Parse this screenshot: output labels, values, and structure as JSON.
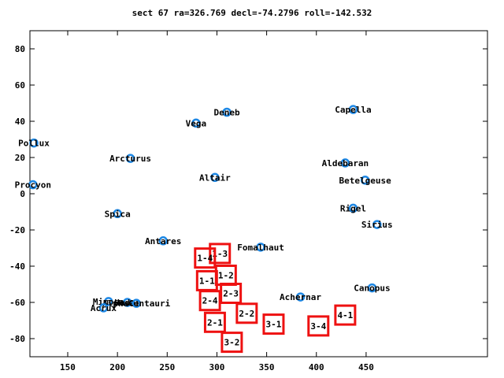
{
  "chart_data": {
    "type": "scatter",
    "title": "sect 67 ra=326.769 decl=-74.2796 roll=-142.532",
    "xlabel": "",
    "ylabel": "",
    "xlim": [
      112,
      572
    ],
    "ylim": [
      -90,
      90
    ],
    "x_ticks": [
      150,
      200,
      250,
      300,
      350,
      400,
      450
    ],
    "y_ticks": [
      -80,
      -60,
      -40,
      -20,
      0,
      20,
      40,
      60,
      80
    ],
    "grid": false,
    "legend": "none",
    "colors": {
      "star_marker": "#1e88e5",
      "sector_box": "#ee1111",
      "axes": "#000000"
    },
    "stars": [
      {
        "name": "Capella",
        "x": 437,
        "y": 46.5
      },
      {
        "name": "Deneb",
        "x": 310,
        "y": 45
      },
      {
        "name": "Vega",
        "x": 279,
        "y": 39
      },
      {
        "name": "Pollux",
        "x": 116,
        "y": 28
      },
      {
        "name": "Arcturus",
        "x": 213,
        "y": 19.5
      },
      {
        "name": "Aldebaran",
        "x": 429,
        "y": 17
      },
      {
        "name": "Altair",
        "x": 298,
        "y": 9
      },
      {
        "name": "Betelgeuse",
        "x": 449,
        "y": 7.5
      },
      {
        "name": "Procyon",
        "x": 115,
        "y": 5
      },
      {
        "name": "Rigel",
        "x": 437,
        "y": -8
      },
      {
        "name": "Spica",
        "x": 200,
        "y": -11
      },
      {
        "name": "Sirius",
        "x": 461,
        "y": -17
      },
      {
        "name": "Antares",
        "x": 246,
        "y": -26
      },
      {
        "name": "Fomalhaut",
        "x": 344,
        "y": -29.5
      },
      {
        "name": "Canopus",
        "x": 456,
        "y": -52
      },
      {
        "name": "Achernar",
        "x": 384,
        "y": -57
      },
      {
        "name": "Mimosa",
        "x": 191,
        "y": -59.5
      },
      {
        "name": "Hadar",
        "x": 210,
        "y": -60
      },
      {
        "name": "AlphaCentauri",
        "x": 219,
        "y": -60.5
      },
      {
        "name": "Acrux",
        "x": 186,
        "y": -63
      }
    ],
    "sectors": [
      {
        "label": "1-3",
        "x": 303,
        "y": -33
      },
      {
        "label": "1-4",
        "x": 288,
        "y": -35.5
      },
      {
        "label": "1-2",
        "x": 309,
        "y": -45
      },
      {
        "label": "1-1",
        "x": 290,
        "y": -48
      },
      {
        "label": "2-3",
        "x": 314,
        "y": -55
      },
      {
        "label": "2-4",
        "x": 293,
        "y": -59
      },
      {
        "label": "2-2",
        "x": 330,
        "y": -66
      },
      {
        "label": "2-1",
        "x": 298,
        "y": -71
      },
      {
        "label": "3-1",
        "x": 357,
        "y": -72
      },
      {
        "label": "3-4",
        "x": 402,
        "y": -73
      },
      {
        "label": "4-1",
        "x": 429,
        "y": -67
      },
      {
        "label": "3-2",
        "x": 315,
        "y": -82
      }
    ]
  }
}
